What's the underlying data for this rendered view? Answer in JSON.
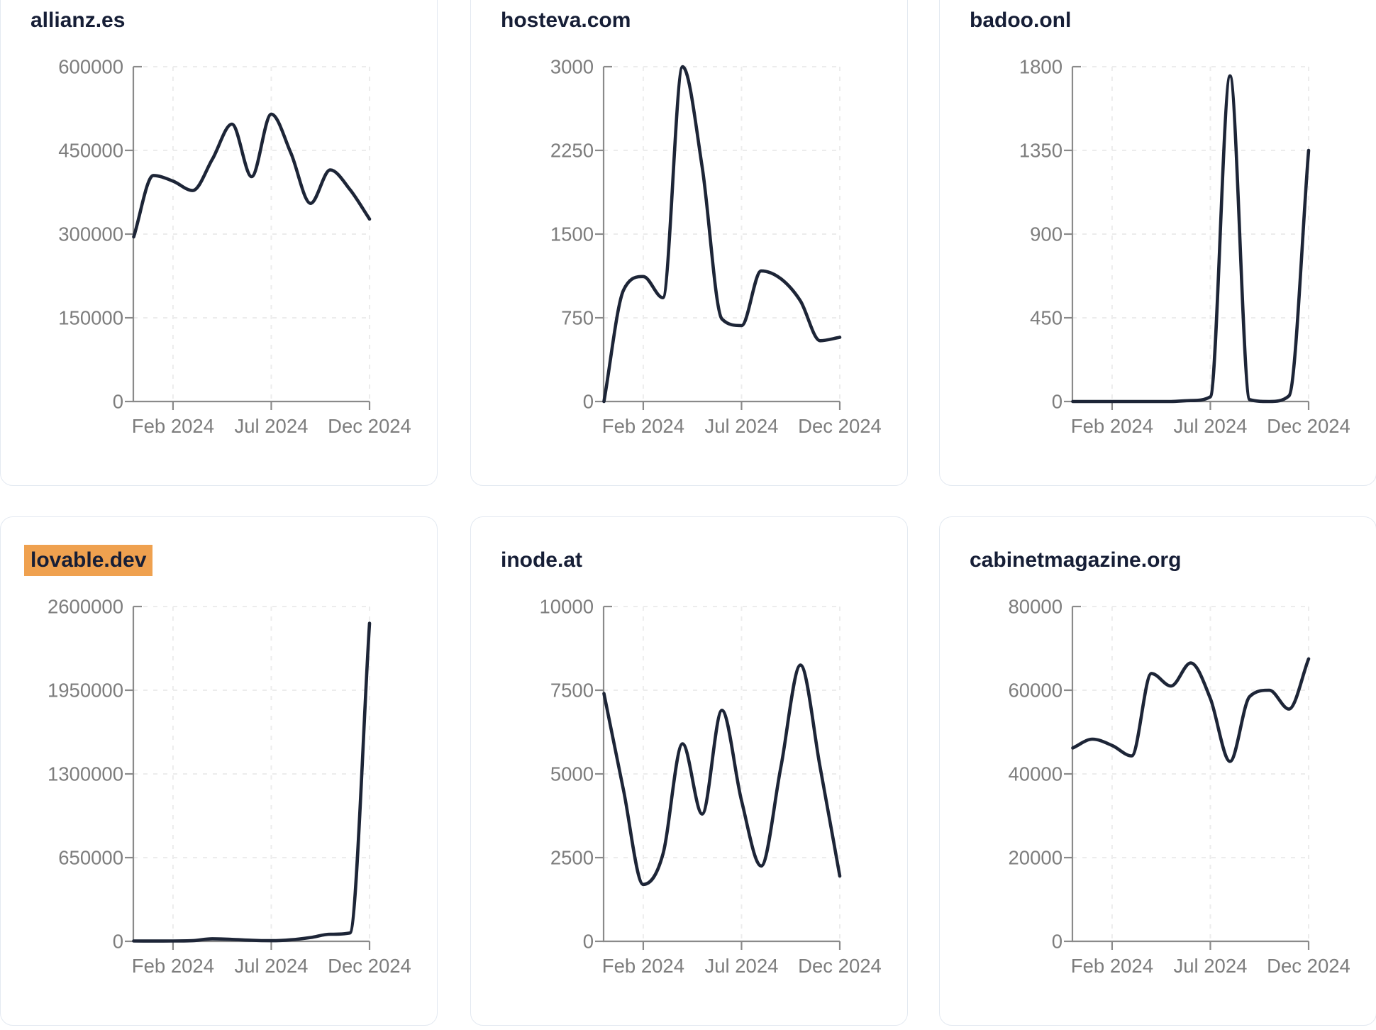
{
  "style": {
    "background": "#ffffff",
    "card_border_color": "#e3e9f1",
    "title_color": "#161e36",
    "highlight_color": "#efa14f",
    "line_color": "#1d2537",
    "axis_color": "#8a8a8a",
    "tick_label_color": "#7d7d7d",
    "grid_color": "#ececec"
  },
  "chart_data": [
    {
      "type": "line",
      "title": "allianz.es",
      "title_highlighted": false,
      "x": [
        "Dec 2023",
        "Jan 2024",
        "Feb 2024",
        "Mar 2024",
        "Apr 2024",
        "May 2024",
        "Jun 2024",
        "Jul 2024",
        "Aug 2024",
        "Sep 2024",
        "Oct 2024",
        "Nov 2024",
        "Dec 2024"
      ],
      "values": [
        295000,
        405000,
        395000,
        378000,
        434000,
        497000,
        403000,
        515000,
        445000,
        355000,
        415000,
        380000,
        327000
      ],
      "ylim": [
        0,
        600000
      ],
      "y_ticks": [
        600000,
        450000,
        300000,
        150000,
        0
      ],
      "x_tick_labels": [
        "Feb 2024",
        "Jul 2024",
        "Dec 2024"
      ],
      "x_tick_indices": [
        2,
        7,
        12
      ],
      "grid": "dashed",
      "legend": "none"
    },
    {
      "type": "line",
      "title": "hosteva.com",
      "title_highlighted": false,
      "x": [
        "Dec 2023",
        "Jan 2024",
        "Feb 2024",
        "Mar 2024",
        "Apr 2024",
        "May 2024",
        "Jun 2024",
        "Jul 2024",
        "Aug 2024",
        "Sep 2024",
        "Oct 2024",
        "Nov 2024",
        "Dec 2024"
      ],
      "values": [
        0,
        1000,
        1120,
        930,
        3000,
        2100,
        740,
        680,
        1170,
        1100,
        900,
        545,
        575
      ],
      "ylim": [
        0,
        3000
      ],
      "y_ticks": [
        3000,
        2250,
        1500,
        750,
        0
      ],
      "x_tick_labels": [
        "Feb 2024",
        "Jul 2024",
        "Dec 2024"
      ],
      "x_tick_indices": [
        2,
        7,
        12
      ],
      "grid": "dashed",
      "legend": "none"
    },
    {
      "type": "line",
      "title": "badoo.onl",
      "title_highlighted": false,
      "x": [
        "Dec 2023",
        "Jan 2024",
        "Feb 2024",
        "Mar 2024",
        "Apr 2024",
        "May 2024",
        "Jun 2024",
        "Jul 2024",
        "Aug 2024",
        "Sep 2024",
        "Oct 2024",
        "Nov 2024",
        "Dec 2024"
      ],
      "values": [
        0,
        0,
        0,
        0,
        0,
        0,
        5,
        25,
        1750,
        10,
        0,
        30,
        1350
      ],
      "ylim": [
        0,
        1800
      ],
      "y_ticks": [
        1800,
        1350,
        900,
        450,
        0
      ],
      "x_tick_labels": [
        "Feb 2024",
        "Jul 2024",
        "Dec 2024"
      ],
      "x_tick_indices": [
        2,
        7,
        12
      ],
      "grid": "dashed",
      "legend": "none"
    },
    {
      "type": "line",
      "title": "lovable.dev",
      "title_highlighted": true,
      "x": [
        "Dec 2023",
        "Jan 2024",
        "Feb 2024",
        "Mar 2024",
        "Apr 2024",
        "May 2024",
        "Jun 2024",
        "Jul 2024",
        "Aug 2024",
        "Sep 2024",
        "Oct 2024",
        "Nov 2024",
        "Dec 2024"
      ],
      "values": [
        3000,
        2000,
        2500,
        5000,
        20000,
        15000,
        8000,
        5000,
        12000,
        30000,
        55000,
        65000,
        2470000
      ],
      "ylim": [
        0,
        2600000
      ],
      "y_ticks": [
        2600000,
        1950000,
        1300000,
        650000,
        0
      ],
      "x_tick_labels": [
        "Feb 2024",
        "Jul 2024",
        "Dec 2024"
      ],
      "x_tick_indices": [
        2,
        7,
        12
      ],
      "grid": "dashed",
      "legend": "none"
    },
    {
      "type": "line",
      "title": "inode.at",
      "title_highlighted": false,
      "x": [
        "Dec 2023",
        "Jan 2024",
        "Feb 2024",
        "Mar 2024",
        "Apr 2024",
        "May 2024",
        "Jun 2024",
        "Jul 2024",
        "Aug 2024",
        "Sep 2024",
        "Oct 2024",
        "Nov 2024",
        "Dec 2024"
      ],
      "values": [
        7400,
        4500,
        1700,
        2600,
        5900,
        3800,
        6900,
        4200,
        2250,
        5200,
        8250,
        5200,
        1950
      ],
      "ylim": [
        0,
        10000
      ],
      "y_ticks": [
        10000,
        7500,
        5000,
        2500,
        0
      ],
      "x_tick_labels": [
        "Feb 2024",
        "Jul 2024",
        "Dec 2024"
      ],
      "x_tick_indices": [
        2,
        7,
        12
      ],
      "grid": "dashed",
      "legend": "none"
    },
    {
      "type": "line",
      "title": "cabinetmagazine.org",
      "title_highlighted": false,
      "x": [
        "Dec 2023",
        "Jan 2024",
        "Feb 2024",
        "Mar 2024",
        "Apr 2024",
        "May 2024",
        "Jun 2024",
        "Jul 2024",
        "Aug 2024",
        "Sep 2024",
        "Oct 2024",
        "Nov 2024",
        "Dec 2024"
      ],
      "values": [
        46200,
        48300,
        46800,
        44300,
        64000,
        61000,
        66500,
        58000,
        43000,
        58500,
        60000,
        55500,
        67500
      ],
      "ylim": [
        0,
        80000
      ],
      "y_ticks": [
        80000,
        60000,
        40000,
        20000,
        0
      ],
      "x_tick_labels": [
        "Feb 2024",
        "Jul 2024",
        "Dec 2024"
      ],
      "x_tick_indices": [
        2,
        7,
        12
      ],
      "grid": "dashed",
      "legend": "none"
    }
  ]
}
